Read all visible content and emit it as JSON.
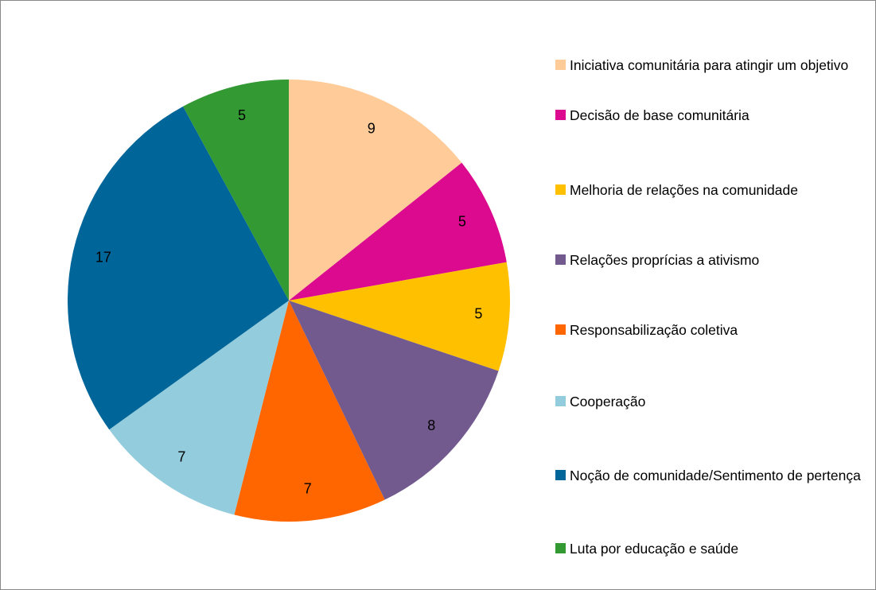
{
  "chart_data": {
    "type": "pie",
    "categories": [
      "Iniciativa comunitária para atingir um objetivo",
      "Decisão de base comunitária",
      "Melhoria de relações na comunidade",
      "Relações proprícias a ativismo",
      "Responsabilização coletiva",
      "Cooperação",
      "Noção de comunidade/Sentimento de pertença",
      "Luta por educação e saúde"
    ],
    "values": [
      9,
      5,
      5,
      8,
      7,
      7,
      17,
      5
    ],
    "colors": [
      "#FFCC99",
      "#DC0A8E",
      "#FFC000",
      "#725A8F",
      "#FF6600",
      "#93CDDD",
      "#00669A",
      "#339933"
    ],
    "legend": "right"
  }
}
